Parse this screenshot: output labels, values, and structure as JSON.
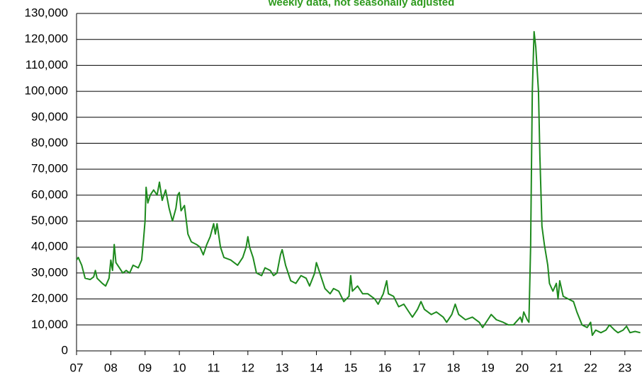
{
  "chart_data": {
    "type": "line",
    "subtitle": "weekly data, not seasonally adjusted",
    "x": [
      2007.0,
      2007.05,
      2007.15,
      2007.25,
      2007.4,
      2007.5,
      2007.55,
      2007.6,
      2007.75,
      2007.85,
      2007.95,
      2008.0,
      2008.05,
      2008.1,
      2008.15,
      2008.25,
      2008.35,
      2008.45,
      2008.55,
      2008.65,
      2008.8,
      2008.9,
      2008.95,
      2009.0,
      2009.03,
      2009.08,
      2009.15,
      2009.25,
      2009.35,
      2009.42,
      2009.5,
      2009.6,
      2009.7,
      2009.8,
      2009.9,
      2009.95,
      2010.0,
      2010.05,
      2010.15,
      2010.25,
      2010.35,
      2010.5,
      2010.6,
      2010.7,
      2010.8,
      2010.9,
      2011.0,
      2011.05,
      2011.1,
      2011.2,
      2011.3,
      2011.5,
      2011.7,
      2011.85,
      2011.95,
      2012.0,
      2012.05,
      2012.15,
      2012.25,
      2012.4,
      2012.5,
      2012.65,
      2012.75,
      2012.85,
      2012.95,
      2013.0,
      2013.1,
      2013.25,
      2013.4,
      2013.55,
      2013.7,
      2013.8,
      2013.95,
      2014.0,
      2014.1,
      2014.25,
      2014.4,
      2014.5,
      2014.65,
      2014.8,
      2014.95,
      2015.0,
      2015.05,
      2015.2,
      2015.35,
      2015.5,
      2015.7,
      2015.8,
      2015.95,
      2016.05,
      2016.1,
      2016.25,
      2016.4,
      2016.55,
      2016.7,
      2016.8,
      2016.95,
      2017.05,
      2017.15,
      2017.35,
      2017.5,
      2017.7,
      2017.8,
      2017.95,
      2018.05,
      2018.15,
      2018.35,
      2018.55,
      2018.75,
      2018.85,
      2019.0,
      2019.1,
      2019.25,
      2019.45,
      2019.6,
      2019.75,
      2019.95,
      2020.0,
      2020.05,
      2020.15,
      2020.2,
      2020.25,
      2020.3,
      2020.35,
      2020.4,
      2020.48,
      2020.52,
      2020.58,
      2020.65,
      2020.75,
      2020.8,
      2020.9,
      2021.0,
      2021.05,
      2021.1,
      2021.2,
      2021.35,
      2021.5,
      2021.6,
      2021.75,
      2021.9,
      2022.0,
      2022.05,
      2022.15,
      2022.3,
      2022.45,
      2022.55,
      2022.7,
      2022.8,
      2022.95,
      2023.05,
      2023.15,
      2023.3,
      2023.45
    ],
    "series": [
      {
        "color": "#1e8a1e",
        "values": [
          35000,
          36000,
          33000,
          28000,
          27500,
          28500,
          31000,
          28000,
          26000,
          25000,
          28000,
          35000,
          31000,
          41000,
          34000,
          32000,
          30000,
          31000,
          30000,
          33000,
          32000,
          35000,
          42000,
          50000,
          63000,
          57000,
          60000,
          62000,
          60000,
          65000,
          58000,
          62000,
          55000,
          50000,
          55000,
          60000,
          61000,
          54000,
          56000,
          45000,
          42000,
          41000,
          40000,
          37000,
          41000,
          44000,
          49000,
          45000,
          49000,
          40000,
          36000,
          35000,
          33000,
          36000,
          40000,
          44000,
          40000,
          36000,
          30000,
          29000,
          32000,
          31000,
          29000,
          30000,
          37000,
          39000,
          33000,
          27000,
          26000,
          29000,
          28000,
          25000,
          30000,
          34000,
          30000,
          24000,
          22000,
          24000,
          23000,
          19000,
          21000,
          29000,
          23000,
          25000,
          22000,
          22000,
          20000,
          18000,
          22000,
          27000,
          22000,
          21000,
          17000,
          18000,
          15000,
          13000,
          16000,
          19000,
          16000,
          14000,
          15000,
          13000,
          11000,
          14000,
          18000,
          14000,
          12000,
          13000,
          11000,
          9000,
          12000,
          14000,
          12000,
          11000,
          10000,
          10000,
          13000,
          11000,
          15000,
          12000,
          11000,
          40000,
          100000,
          123000,
          117000,
          100000,
          75000,
          48000,
          41000,
          33000,
          26000,
          23000,
          26000,
          20000,
          27000,
          21000,
          20000,
          19000,
          15000,
          10000,
          9000,
          11000,
          6000,
          8000,
          7000,
          8000,
          10000,
          8000,
          7000,
          8000,
          9500,
          7000,
          7500,
          7000
        ]
      }
    ],
    "xlim": [
      2007,
      2023.5
    ],
    "xticks": [
      {
        "value": 2007,
        "label": "07"
      },
      {
        "value": 2008,
        "label": "08"
      },
      {
        "value": 2009,
        "label": "09"
      },
      {
        "value": 2010,
        "label": "10"
      },
      {
        "value": 2011,
        "label": "11"
      },
      {
        "value": 2012,
        "label": "12"
      },
      {
        "value": 2013,
        "label": "13"
      },
      {
        "value": 2014,
        "label": "14"
      },
      {
        "value": 2015,
        "label": "15"
      },
      {
        "value": 2016,
        "label": "16"
      },
      {
        "value": 2017,
        "label": "17"
      },
      {
        "value": 2018,
        "label": "18"
      },
      {
        "value": 2019,
        "label": "19"
      },
      {
        "value": 2020,
        "label": "20"
      },
      {
        "value": 2021,
        "label": "21"
      },
      {
        "value": 2022,
        "label": "22"
      },
      {
        "value": 2023,
        "label": "23"
      }
    ],
    "ylim": [
      0,
      130000
    ],
    "yticks": [
      0,
      {
        "value": 10000,
        "label": "10,000"
      },
      {
        "value": 20000,
        "label": "20,000"
      },
      {
        "value": 30000,
        "label": "30,000"
      },
      {
        "value": 40000,
        "label": "40,000"
      },
      {
        "value": 50000,
        "label": "50,000"
      },
      {
        "value": 60000,
        "label": "60,000"
      },
      {
        "value": 70000,
        "label": "70,000"
      },
      {
        "value": 80000,
        "label": "80,000"
      },
      {
        "value": 90000,
        "label": "90,000"
      },
      {
        "value": 100000,
        "label": "100,000"
      },
      {
        "value": 110000,
        "label": "110,000"
      },
      {
        "value": 120000,
        "label": "120,000"
      },
      {
        "value": 130000,
        "label": "130,000"
      }
    ],
    "grid": true
  }
}
